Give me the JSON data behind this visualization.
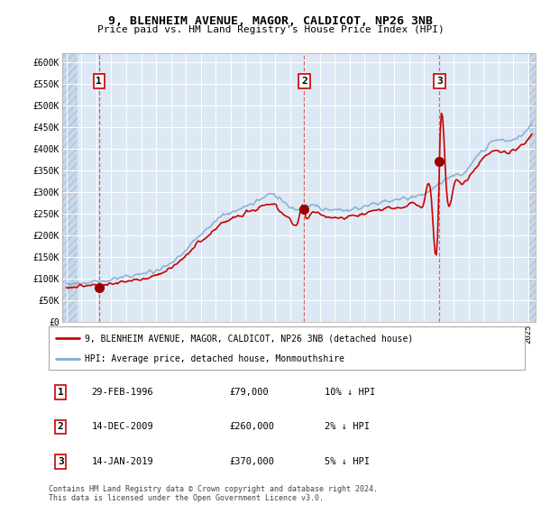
{
  "title": "9, BLENHEIM AVENUE, MAGOR, CALDICOT, NP26 3NB",
  "subtitle": "Price paid vs. HM Land Registry's House Price Index (HPI)",
  "background_chart": "#dce9f5",
  "red_line_color": "#cc0000",
  "blue_line_color": "#88aacc",
  "legend_label_red": "9, BLENHEIM AVENUE, MAGOR, CALDICOT, NP26 3NB (detached house)",
  "legend_label_blue": "HPI: Average price, detached house, Monmouthshire",
  "transactions": [
    {
      "num": 1,
      "date": "29-FEB-1996",
      "price": 79000,
      "pct": "10%",
      "year": 1996.17
    },
    {
      "num": 2,
      "date": "14-DEC-2009",
      "price": 260000,
      "pct": "2%",
      "year": 2009.96
    },
    {
      "num": 3,
      "date": "14-JAN-2019",
      "price": 370000,
      "pct": "5%",
      "year": 2019.04
    }
  ],
  "footer": "Contains HM Land Registry data © Crown copyright and database right 2024.\nThis data is licensed under the Open Government Licence v3.0.",
  "ylim": [
    0,
    620000
  ],
  "xlim_start": 1993.7,
  "xlim_end": 2025.5,
  "yticks": [
    0,
    50000,
    100000,
    150000,
    200000,
    250000,
    300000,
    350000,
    400000,
    450000,
    500000,
    550000,
    600000
  ],
  "ytick_labels": [
    "£0",
    "£50K",
    "£100K",
    "£150K",
    "£200K",
    "£250K",
    "£300K",
    "£350K",
    "£400K",
    "£450K",
    "£500K",
    "£550K",
    "£600K"
  ]
}
